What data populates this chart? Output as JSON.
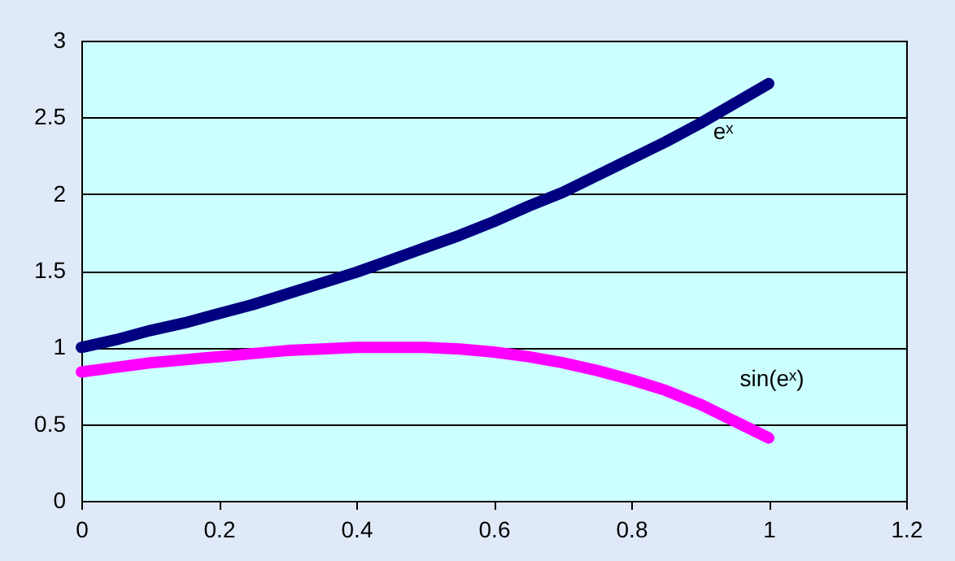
{
  "chart_data": {
    "type": "line",
    "x": [
      0,
      0.05,
      0.1,
      0.15,
      0.2,
      0.25,
      0.3,
      0.35,
      0.4,
      0.45,
      0.5,
      0.55,
      0.6,
      0.65,
      0.7,
      0.75,
      0.8,
      0.85,
      0.9,
      0.95,
      1
    ],
    "series": [
      {
        "name": "eˣ",
        "color": "#000080",
        "values": [
          1,
          1.05,
          1.11,
          1.16,
          1.22,
          1.28,
          1.35,
          1.42,
          1.49,
          1.57,
          1.65,
          1.73,
          1.82,
          1.92,
          2.01,
          2.12,
          2.23,
          2.34,
          2.46,
          2.59,
          2.72
        ]
      },
      {
        "name": "sin(eˣ)",
        "color": "#ff00ff",
        "values": [
          0.84,
          0.87,
          0.9,
          0.92,
          0.94,
          0.96,
          0.98,
          0.99,
          1.0,
          1.0,
          1.0,
          0.99,
          0.97,
          0.94,
          0.9,
          0.85,
          0.79,
          0.72,
          0.63,
          0.52,
          0.41
        ]
      }
    ],
    "xlim": [
      0,
      1.2
    ],
    "xticks": [
      0,
      0.2,
      0.4,
      0.6,
      0.8,
      1,
      1.2
    ],
    "ylim": [
      0,
      3
    ],
    "yticks": [
      0,
      0.5,
      1,
      1.5,
      2,
      2.5,
      3
    ],
    "grid": "y",
    "legend": false,
    "marker": "none",
    "line_style": "solid"
  }
}
